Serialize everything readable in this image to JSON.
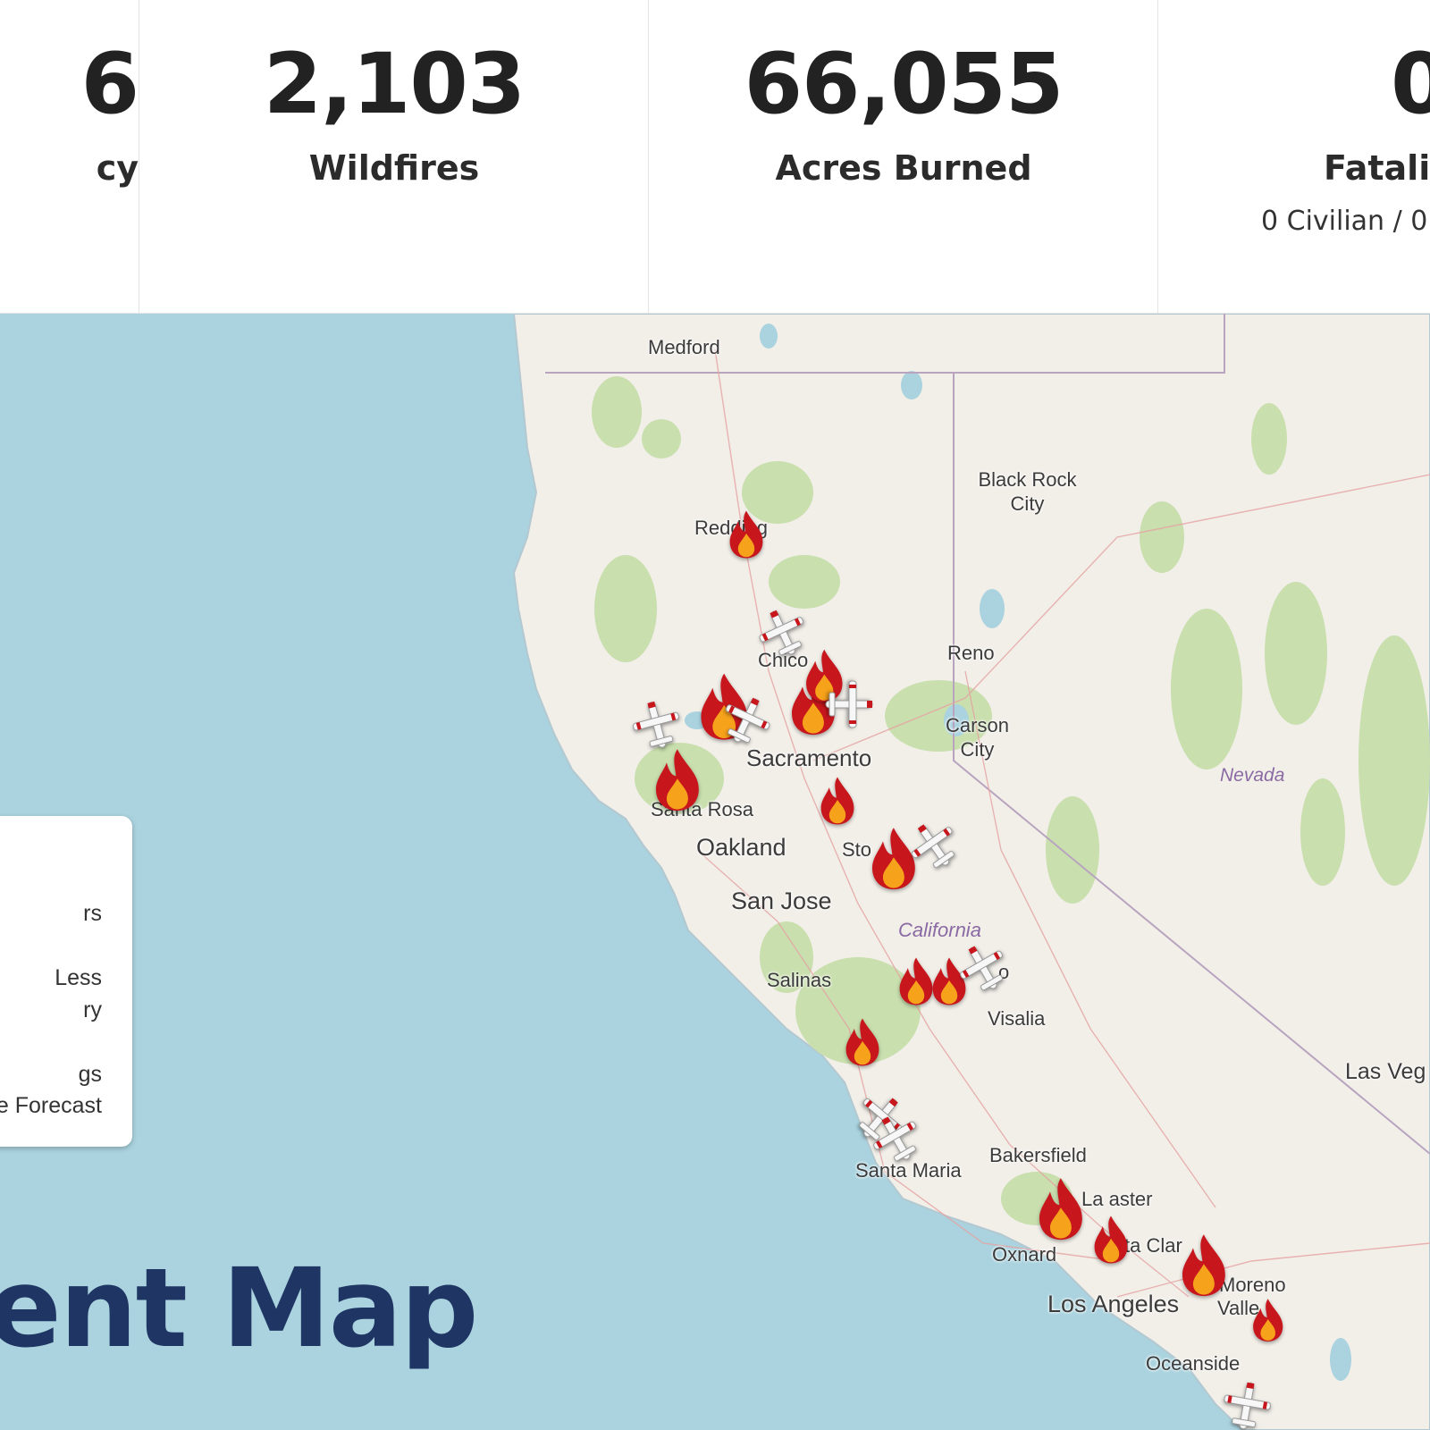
{
  "stats": [
    {
      "value": "6",
      "label": "cy"
    },
    {
      "value": "2,103",
      "label": "Wildfires"
    },
    {
      "value": "66,055",
      "label": "Acres Burned"
    },
    {
      "value": "0",
      "label": "Fatalit",
      "sub": "0 Civilian / 0"
    }
  ],
  "map": {
    "state_labels": {
      "california": "California",
      "nevada": "Nevada"
    },
    "cities": {
      "medford": "Medford",
      "redding": "Redding",
      "black_rock_city": "Black Rock City",
      "chico": "Chico",
      "reno": "Reno",
      "carson_city": "Carson City",
      "sacramento": "Sacramento",
      "santa_rosa": "Santa Rosa",
      "oakland": "Oakland",
      "stockton": "Sto",
      "san_jose": "San Jose",
      "salinas": "Salinas",
      "visalia": "Visalia",
      "fresno_fragment": "o",
      "bakersfield": "Bakersfield",
      "santa_maria": "Santa Maria",
      "lancaster": "La  aster",
      "santa_clarita": "S  nta Clar",
      "oxnard": "Oxnard",
      "los_angeles": "Los Angeles",
      "moreno": "Moreno",
      "valley": "Valle",
      "oceanside": "Oceanside",
      "las_vegas": "Las Veg"
    },
    "fire_icon": "fire-icon",
    "aircraft_icon": "airplane-icon"
  },
  "legend": {
    "items": [
      "rs",
      "Less",
      "ry",
      "gs",
      "e Forecast"
    ]
  },
  "heading": "ent Map"
}
